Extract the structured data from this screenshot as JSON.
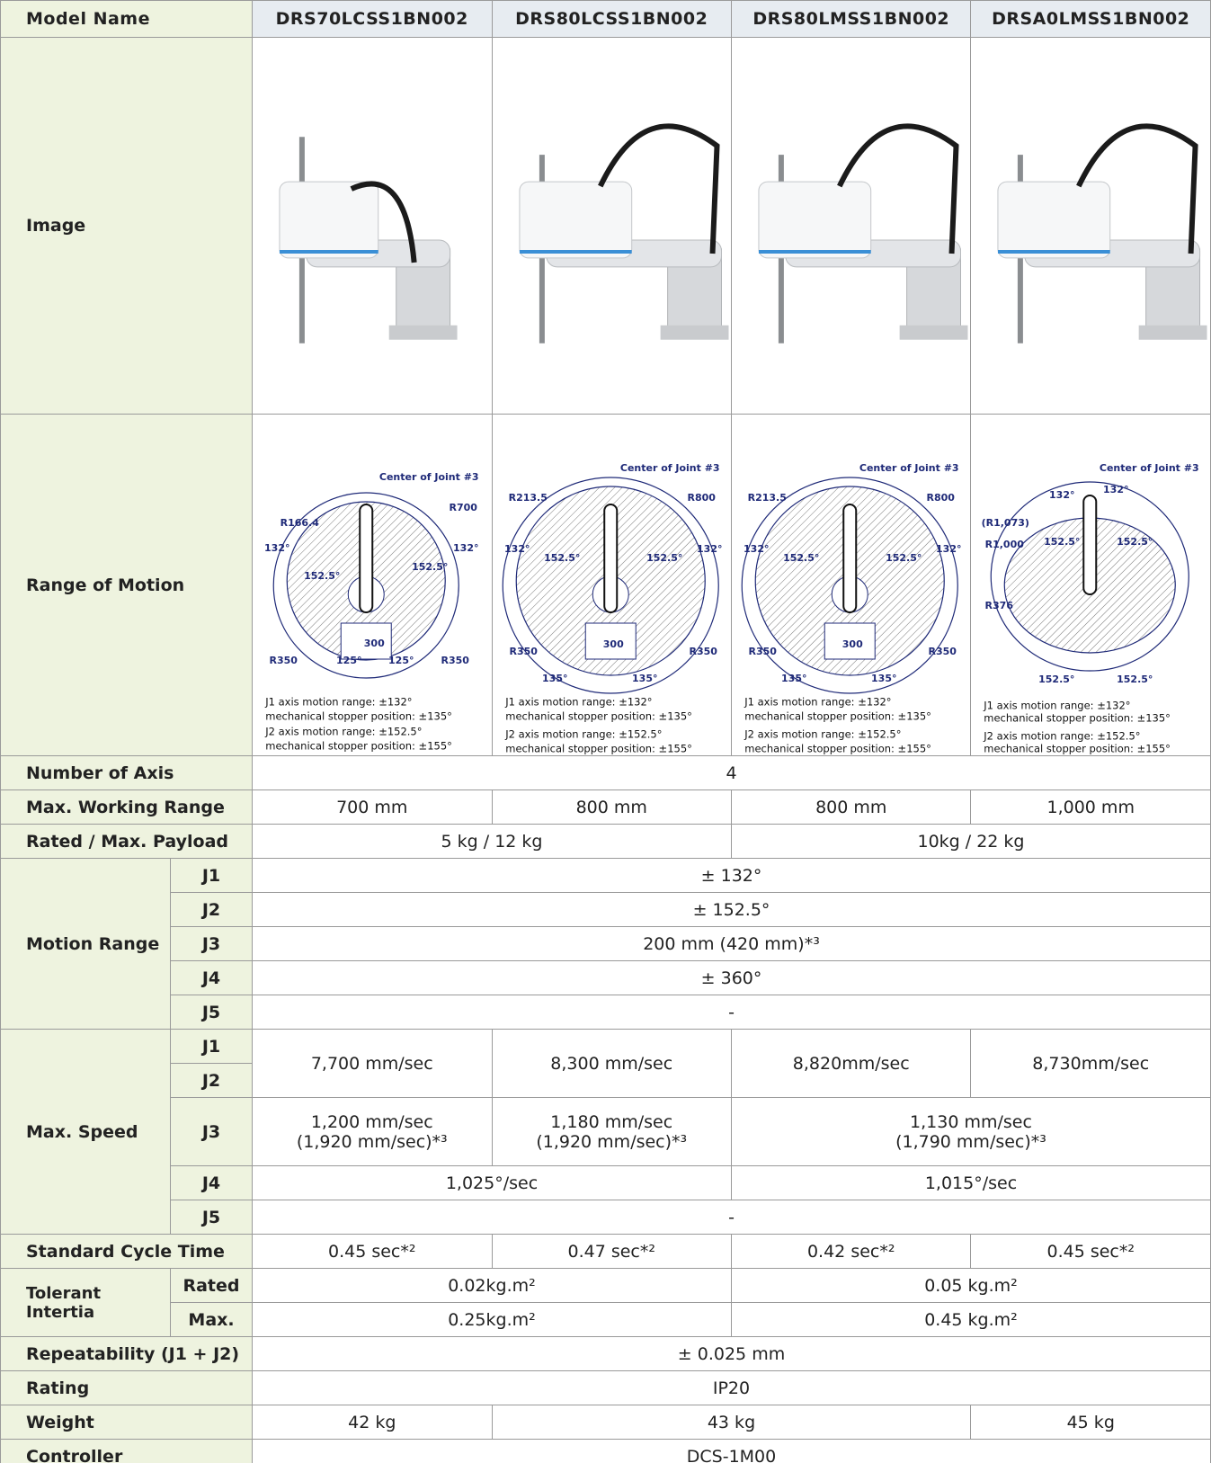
{
  "header": {
    "label": "Model Name",
    "models": [
      "DRS70LCSS1BN002",
      "DRS80LCSS1BN002",
      "DRS80LMSS1BN002",
      "DRSA0LMSS1BN002"
    ]
  },
  "image_row": {
    "label": "Image"
  },
  "range_row": {
    "label": "Range of Motion",
    "diagrams": [
      {
        "labels": [
          "Center of Joint #3",
          "R700",
          "R166.4",
          "132°",
          "132°",
          "152.5°",
          "152.5°",
          "300",
          "R350",
          "125°",
          "125°",
          "R350"
        ],
        "notes": [
          "J1 axis motion range: ±132°",
          "mechanical stopper position: ±135°",
          "J2 axis motion range: ±152.5°",
          "mechanical stopper position: ±155°"
        ]
      },
      {
        "labels": [
          "Center of Joint #3",
          "R213.5",
          "R800",
          "132°",
          "152.5°",
          "152.5°",
          "132°",
          "300",
          "R350",
          "R350",
          "135°",
          "135°"
        ],
        "notes": [
          "J1 axis motion range: ±132°",
          "mechanical stopper position: ±135°",
          "J2 axis motion range: ±152.5°",
          "mechanical stopper position: ±155°"
        ]
      },
      {
        "labels": [
          "Center of Joint #3",
          "R213.5",
          "R800",
          "132°",
          "152.5°",
          "152.5°",
          "132°",
          "300",
          "R350",
          "R350",
          "135°",
          "135°"
        ],
        "notes": [
          "J1 axis motion range: ±132°",
          "mechanical stopper position: ±135°",
          "J2 axis motion range: ±152.5°",
          "mechanical stopper position: ±155°"
        ]
      },
      {
        "labels": [
          "Center of Joint #3",
          "132°",
          "132°",
          "(R1,073)",
          "R1,000",
          "152.5°",
          "152.5°",
          "R376",
          "152.5°",
          "152.5°"
        ],
        "notes": [
          "J1 axis motion range: ±132°",
          "mechanical stopper position: ±135°",
          "J2 axis motion range: ±152.5°",
          "mechanical stopper position: ±155°"
        ]
      }
    ]
  },
  "number_of_axis": {
    "label": "Number of Axis",
    "value": "4"
  },
  "max_working_range": {
    "label": "Max. Working Range",
    "values": [
      "700 mm",
      "800 mm",
      "800 mm",
      "1,000 mm"
    ]
  },
  "payload": {
    "label": "Rated / Max. Payload",
    "values": [
      "5 kg / 12 kg",
      "10kg / 22 kg"
    ]
  },
  "motion_range": {
    "label": "Motion Range",
    "joints": [
      "J1",
      "J2",
      "J3",
      "J4",
      "J5"
    ],
    "values": [
      "± 132°",
      "± 152.5°",
      "200 mm (420 mm)*³",
      "± 360°",
      "-"
    ]
  },
  "max_speed": {
    "label": "Max. Speed",
    "joints": [
      "J1",
      "J2",
      "J3",
      "J4",
      "J5"
    ],
    "j1_j2": [
      "7,700 mm/sec",
      "8,300 mm/sec",
      "8,820mm/sec",
      "8,730mm/sec"
    ],
    "j3": [
      "1,200 mm/sec\n(1,920 mm/sec)*³",
      "1,180 mm/sec\n(1,920 mm/sec)*³",
      "1,130 mm/sec\n(1,790 mm/sec)*³"
    ],
    "j4": [
      "1,025°/sec",
      "1,015°/sec"
    ],
    "j5": "-"
  },
  "cycle_time": {
    "label": "Standard Cycle Time",
    "values": [
      "0.45 sec*²",
      "0.47 sec*²",
      "0.42 sec*²",
      "0.45 sec*²"
    ]
  },
  "tolerant_inertia": {
    "label": "Tolerant\nIntertia",
    "sub": [
      "Rated",
      "Max."
    ],
    "rated": [
      "0.02kg.m²",
      "0.05 kg.m²"
    ],
    "max": [
      "0.25kg.m²",
      "0.45 kg.m²"
    ]
  },
  "repeatability": {
    "label": "Repeatability  (J1 + J2)",
    "value": "± 0.025 mm"
  },
  "rating": {
    "label": "Rating",
    "value": "IP20"
  },
  "weight": {
    "label": "Weight",
    "values": [
      "42 kg",
      "43 kg",
      "45 kg"
    ]
  },
  "controller": {
    "label": "Controller",
    "value": "DCS-1M00"
  }
}
